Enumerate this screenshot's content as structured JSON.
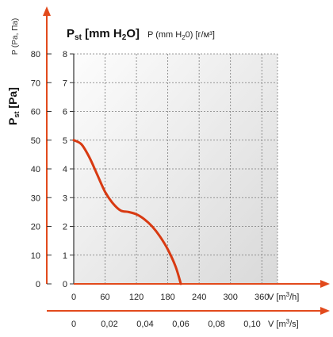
{
  "chart_data": {
    "type": "line",
    "title": {
      "main": "P",
      "main_sub": "st",
      "main_unit_open": " [mm H",
      "main_unit_sub": "2",
      "main_unit_close": "O]",
      "secondary": "P (mm H",
      "secondary_sub": "2",
      "secondary_rest": "0) [г/м³]"
    },
    "y_left": {
      "label_main": "P",
      "label_sub": "st",
      "label_unit": " [Pa]",
      "label_alt": "P (Pa, Па)",
      "ticks": [
        "0",
        "10",
        "20",
        "30",
        "40",
        "50",
        "60",
        "70",
        "80"
      ],
      "range": [
        0,
        80
      ]
    },
    "y_right": {
      "ticks": [
        "0",
        "1",
        "2",
        "3",
        "4",
        "5",
        "6",
        "7",
        "8"
      ],
      "range": [
        0,
        8
      ]
    },
    "x_main": {
      "ticks": [
        "0",
        "60",
        "120",
        "180",
        "240",
        "300",
        "360"
      ],
      "label_prefix": "V [m",
      "label_sup": "3",
      "label_suffix": "/h]",
      "range": [
        0,
        390
      ]
    },
    "x_secondary": {
      "ticks": [
        "0",
        "0,02",
        "0,04",
        "0,06",
        "0,08",
        "0,10"
      ],
      "label_prefix": "V [m",
      "label_sup": "3",
      "label_suffix": "/s]"
    },
    "grid": true,
    "series": [
      {
        "color": "#d83a12",
        "x": [
          0,
          15,
          30,
          45,
          60,
          75,
          90,
          105,
          120,
          135,
          150,
          165,
          180,
          195,
          205
        ],
        "y": [
          50,
          48.5,
          44,
          38,
          32,
          28,
          25.5,
          25,
          24.2,
          22.5,
          20,
          16.5,
          12,
          6,
          0
        ]
      }
    ]
  },
  "colors": {
    "accent": "#e24a1c",
    "curve": "#d83a12",
    "grid": "#7a7a7a",
    "plot_bg_light": "#fdfdfd",
    "plot_bg_dark": "#d9d9d9"
  }
}
